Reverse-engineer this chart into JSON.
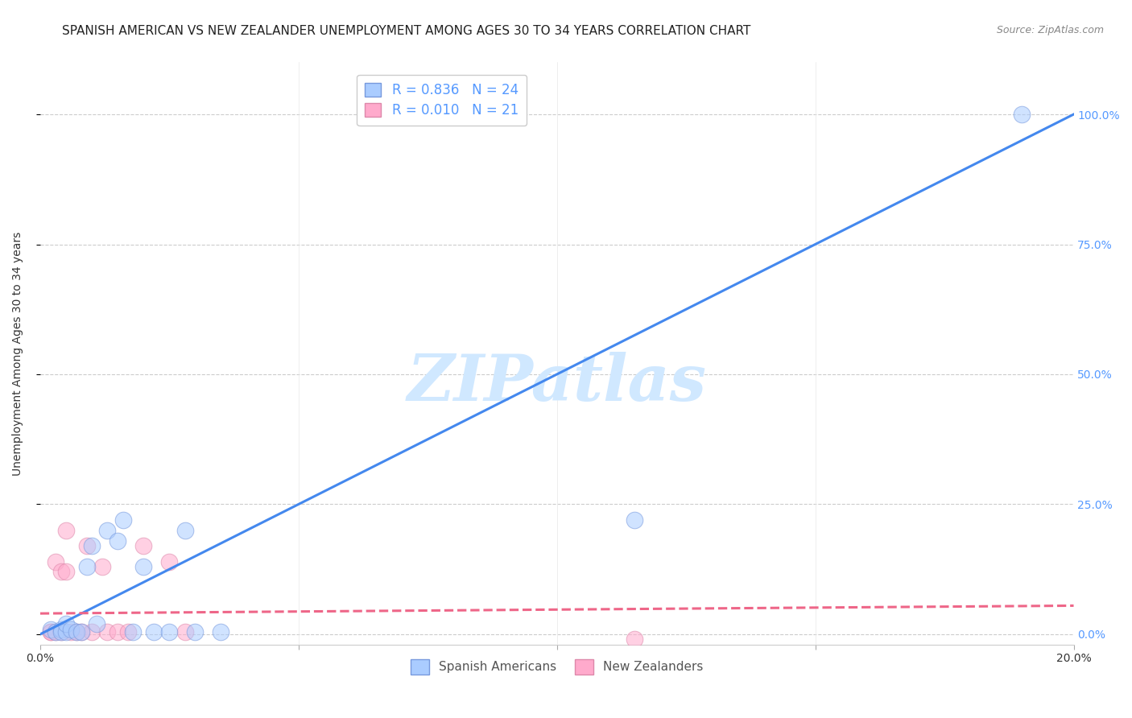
{
  "title": "SPANISH AMERICAN VS NEW ZEALANDER UNEMPLOYMENT AMONG AGES 30 TO 34 YEARS CORRELATION CHART",
  "source": "Source: ZipAtlas.com",
  "xlabel": "",
  "ylabel": "Unemployment Among Ages 30 to 34 years",
  "xlim": [
    0.0,
    0.2
  ],
  "ylim": [
    -0.02,
    1.1
  ],
  "yticks": [
    0.0,
    0.25,
    0.5,
    0.75,
    1.0
  ],
  "ytick_labels": [
    "0.0%",
    "25.0%",
    "50.0%",
    "75.0%",
    "100.0%"
  ],
  "xticks": [
    0.0,
    0.05,
    0.1,
    0.15,
    0.2
  ],
  "xtick_labels": [
    "0.0%",
    "",
    "",
    "",
    "20.0%"
  ],
  "blue_r": "0.836",
  "blue_n": "24",
  "pink_r": "0.010",
  "pink_n": "21",
  "blue_scatter_x": [
    0.002,
    0.003,
    0.004,
    0.004,
    0.005,
    0.005,
    0.006,
    0.007,
    0.008,
    0.009,
    0.01,
    0.011,
    0.013,
    0.015,
    0.016,
    0.018,
    0.02,
    0.022,
    0.025,
    0.028,
    0.03,
    0.035,
    0.115,
    0.19
  ],
  "blue_scatter_y": [
    0.01,
    0.005,
    0.01,
    0.005,
    0.005,
    0.02,
    0.01,
    0.005,
    0.005,
    0.13,
    0.17,
    0.02,
    0.2,
    0.18,
    0.22,
    0.005,
    0.13,
    0.005,
    0.005,
    0.2,
    0.005,
    0.005,
    0.22,
    1.0
  ],
  "pink_scatter_x": [
    0.002,
    0.002,
    0.003,
    0.003,
    0.004,
    0.004,
    0.005,
    0.005,
    0.006,
    0.007,
    0.008,
    0.009,
    0.01,
    0.012,
    0.013,
    0.015,
    0.017,
    0.02,
    0.025,
    0.028,
    0.115
  ],
  "pink_scatter_y": [
    0.005,
    0.005,
    0.14,
    0.005,
    0.12,
    0.005,
    0.2,
    0.12,
    0.005,
    0.005,
    0.005,
    0.17,
    0.005,
    0.13,
    0.005,
    0.005,
    0.005,
    0.17,
    0.14,
    0.005,
    -0.01
  ],
  "blue_line_x": [
    0.0,
    0.2
  ],
  "blue_line_y": [
    0.0,
    1.0
  ],
  "pink_line_x": [
    0.0,
    0.2
  ],
  "pink_line_y": [
    0.04,
    0.055
  ],
  "blue_line_color": "#4488ee",
  "pink_line_color": "#ee6688",
  "blue_scatter_color": "#aaccff",
  "pink_scatter_color": "#ffaacc",
  "blue_scatter_edge": "#7799dd",
  "pink_scatter_edge": "#dd88aa",
  "watermark_text": "ZIPatlas",
  "watermark_color": "#d0e8ff",
  "background_color": "#ffffff",
  "title_fontsize": 11,
  "axis_label_fontsize": 10,
  "tick_fontsize": 10,
  "right_axis_tick_color": "#5599ff",
  "legend_label_color": "#5599ff",
  "grid_color": "#cccccc",
  "bottom_legend_labels": [
    "Spanish Americans",
    "New Zealanders"
  ]
}
